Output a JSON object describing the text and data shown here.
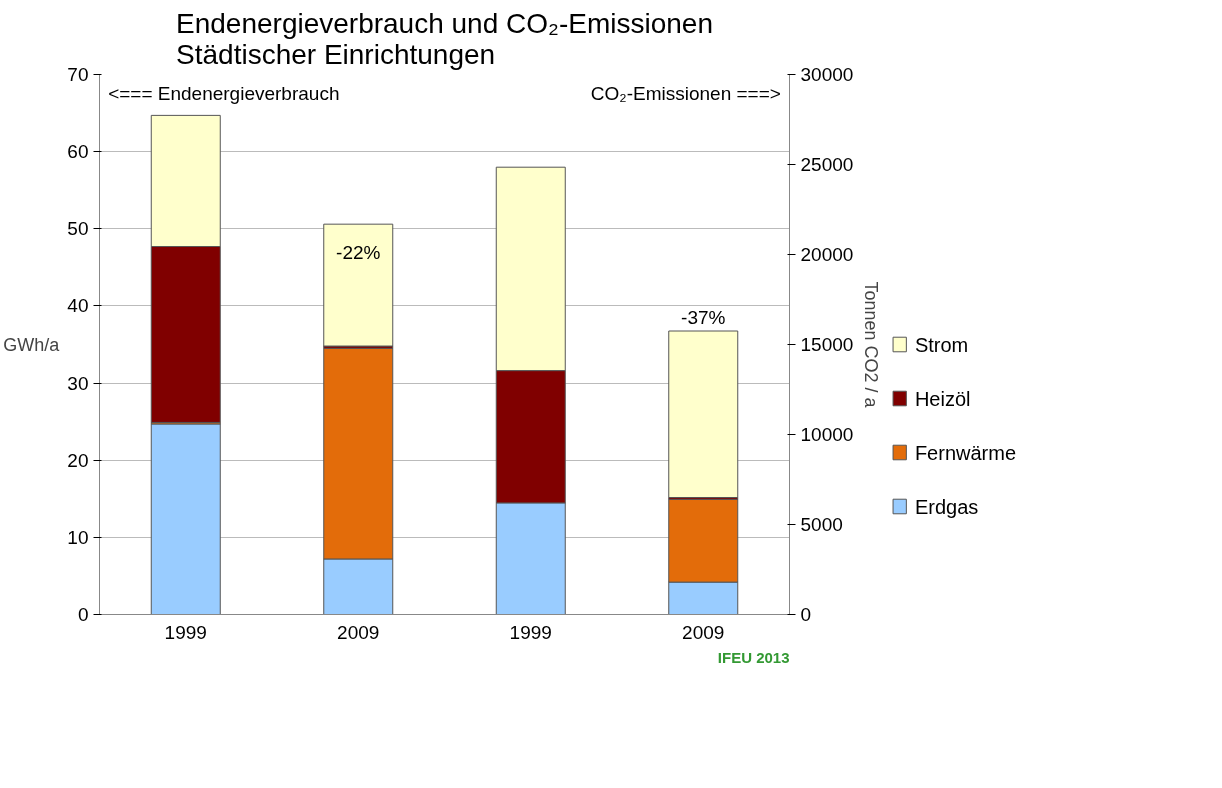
{
  "chart_data": {
    "type": "bar",
    "stacked": true,
    "title": "Endenergieverbrauch und CO₂-Emissionen\nStädtischer Einrichtungen",
    "ylabel": "GWh/a",
    "y2label": "Tonnen CO2 / a",
    "categories": [
      "1999",
      "2009",
      "1999",
      "2009"
    ],
    "ylim": [
      0,
      70
    ],
    "yticks": [
      0,
      10,
      20,
      30,
      40,
      50,
      60,
      70
    ],
    "y2lim": [
      0,
      30000
    ],
    "y2ticks": [
      0,
      5000,
      10000,
      15000,
      20000,
      25000,
      30000
    ],
    "grid": "y",
    "legend": "right",
    "series": [
      {
        "name": "Erdgas",
        "color": "#99ccff",
        "values": [
          24.7,
          7.2,
          null,
          null
        ]
      },
      {
        "name": "Fernwärme",
        "color": "#e36c0a",
        "values": [
          0.2,
          27.3,
          null,
          null
        ]
      },
      {
        "name": "Heizöl",
        "color": "#800000",
        "values": [
          22.8,
          0.3,
          null,
          null
        ]
      },
      {
        "name": "Strom",
        "color": "#ffffcc",
        "values": [
          17.0,
          15.8,
          null,
          null
        ]
      },
      {
        "color": "#99ccff",
        "axis": "y2",
        "values": [
          null,
          null,
          6200,
          1800
        ]
      },
      {
        "color": "#e36c0a",
        "axis": "y2",
        "values": [
          null,
          null,
          null,
          4600
        ]
      },
      {
        "color": "#800000",
        "axis": "y2",
        "values": [
          null,
          null,
          7350,
          100
        ]
      },
      {
        "color": "#ffffcc",
        "axis": "y2",
        "values": [
          null,
          null,
          11300,
          9250
        ]
      }
    ],
    "annotations": [
      "<=== Endenergieverbrauch",
      "CO₂-Emissionen ===>",
      "-22%",
      "-37%",
      "IFEU 2013"
    ]
  }
}
